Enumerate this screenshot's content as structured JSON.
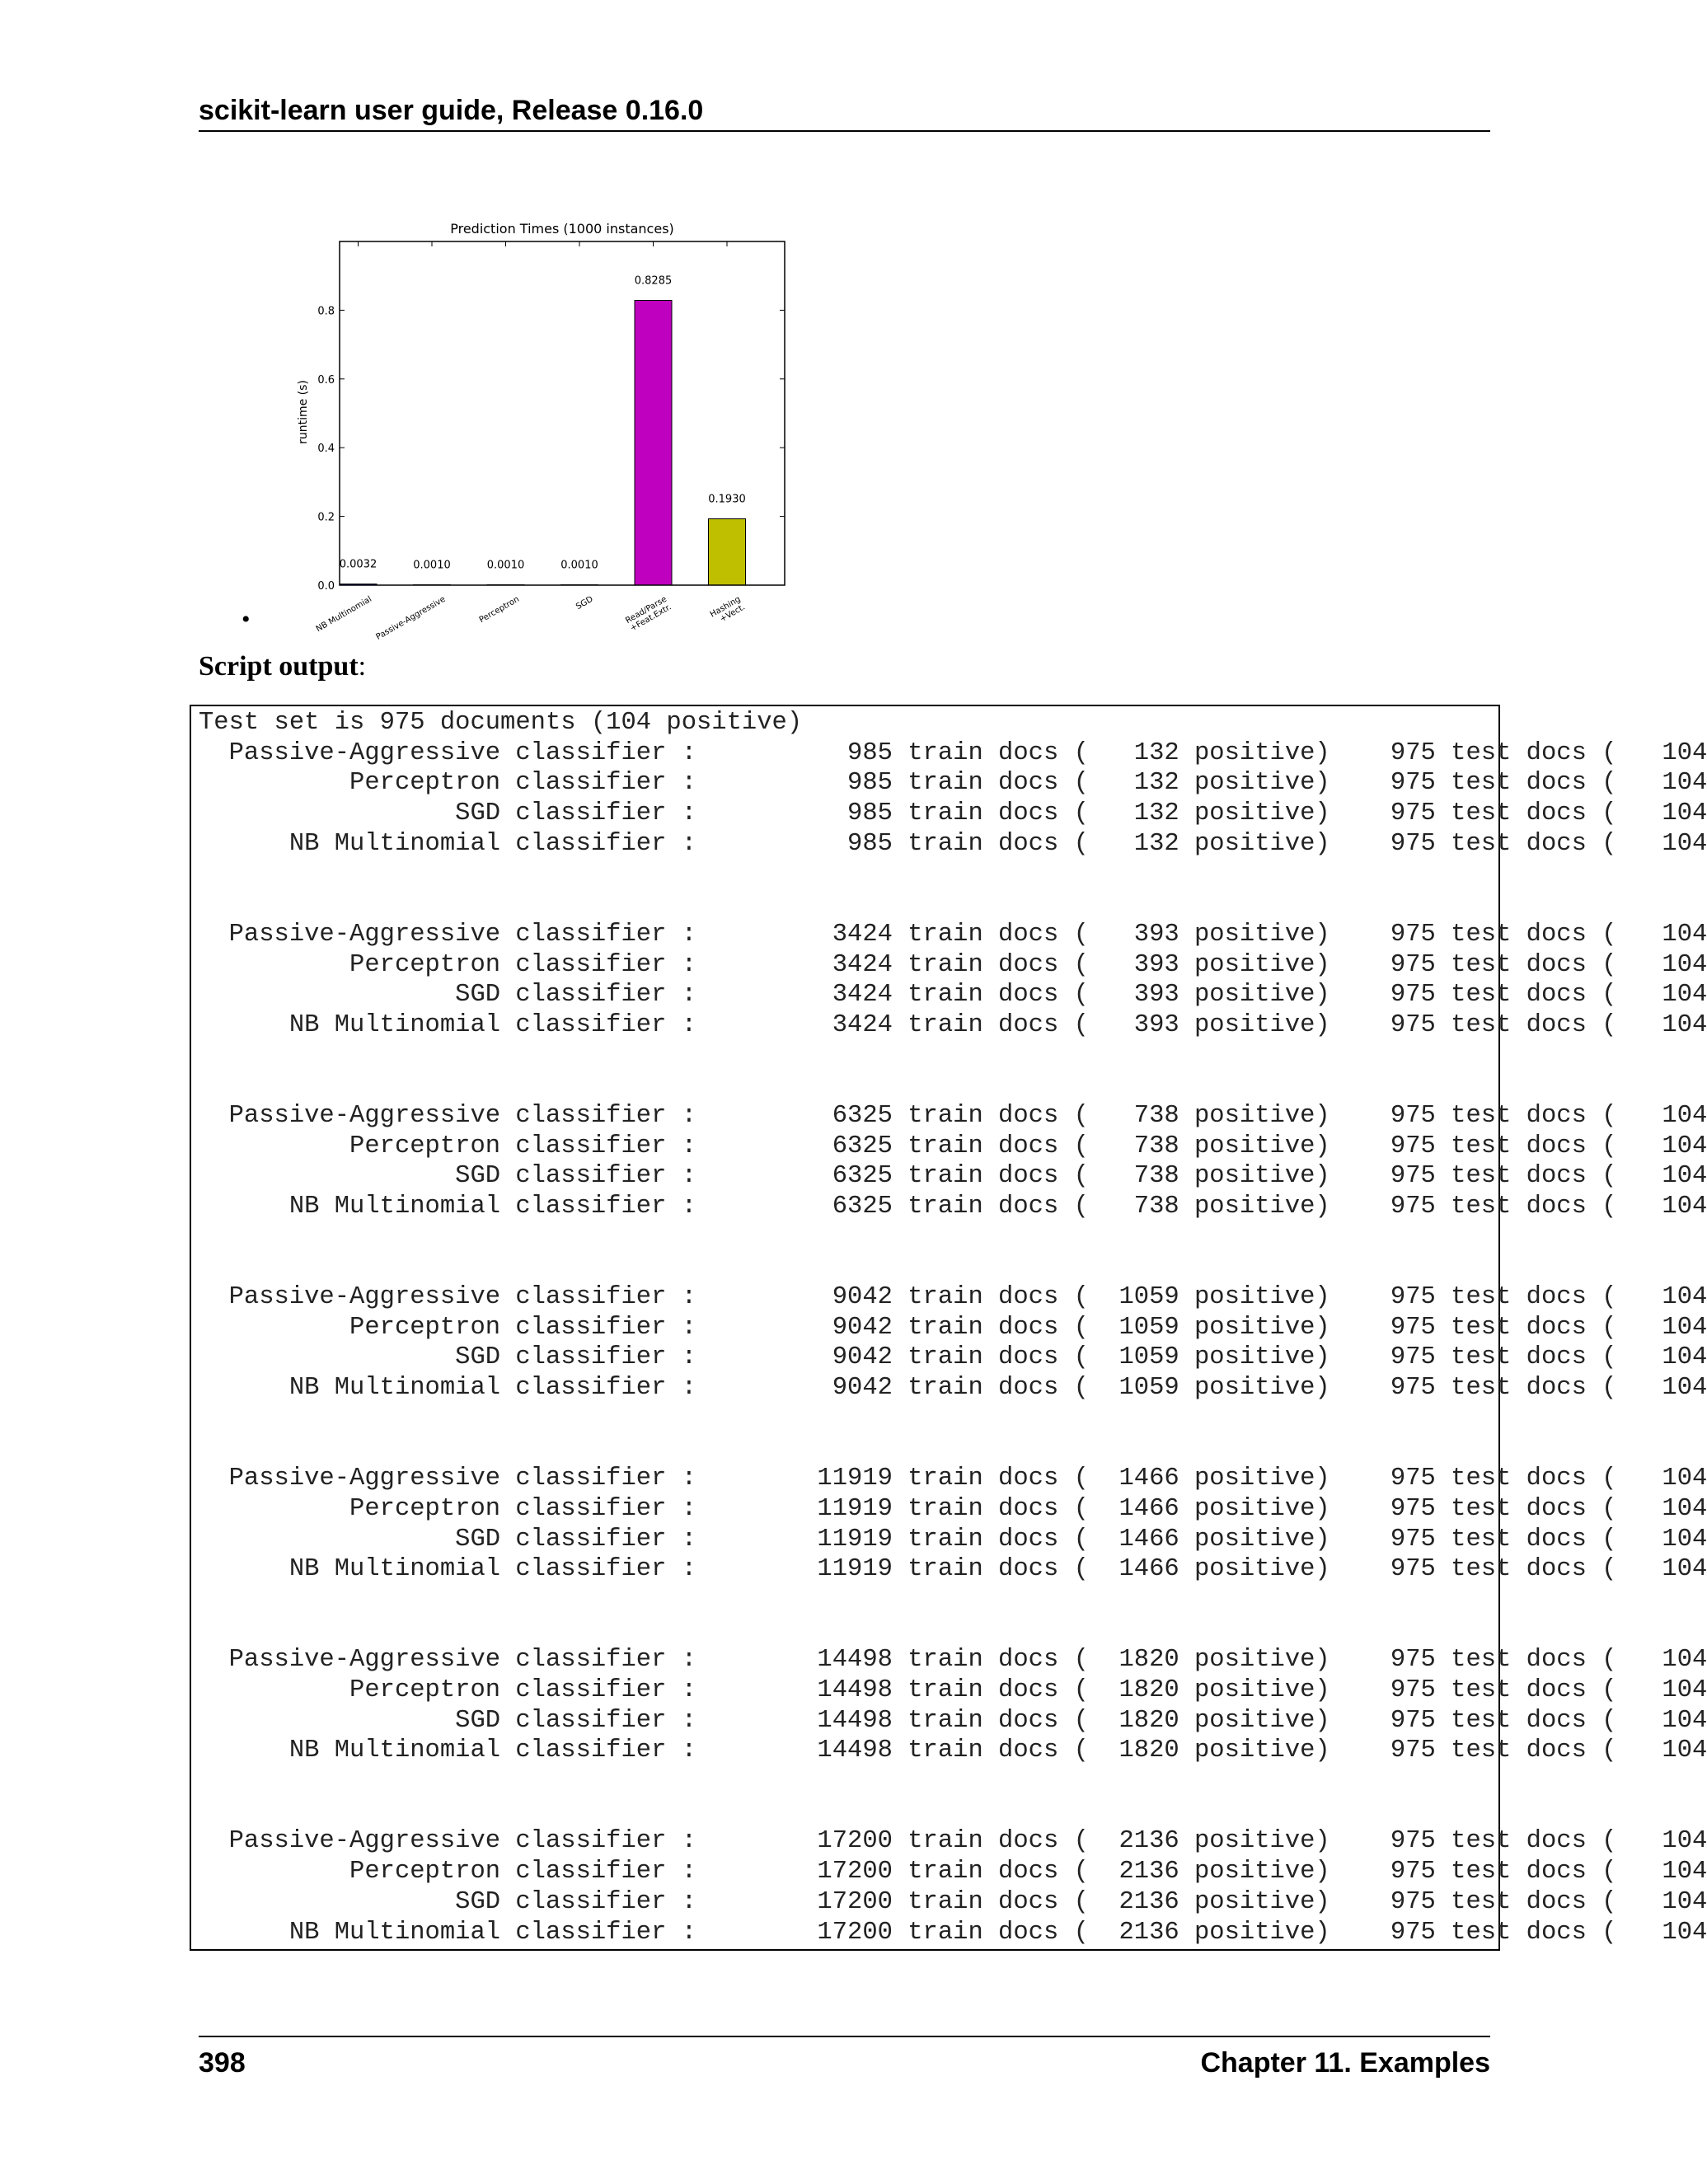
{
  "header": {
    "title": "scikit-learn user guide, Release 0.16.0"
  },
  "figure": {
    "bullet": "•",
    "chart_data": {
      "type": "bar",
      "title": "Prediction Times (1000 instances)",
      "ylabel": "runtime (s)",
      "xlabel": "",
      "ylim": [
        0,
        1.0
      ],
      "yticks": [
        "0.0",
        "0.2",
        "0.4",
        "0.6",
        "0.8"
      ],
      "categories": [
        "NB Multinomial",
        "Passive-Aggressive",
        "Perceptron",
        "SGD",
        "Read/Parse\n+Feat.Extr.",
        "Hashing\n+Vect."
      ],
      "values": [
        0.0032,
        0.001,
        0.001,
        0.001,
        0.8285,
        0.193
      ],
      "value_labels": [
        "0.0032",
        "0.0010",
        "0.0010",
        "0.0010",
        "0.8285",
        "0.1930"
      ],
      "colors": [
        "#0000c0",
        "#0000c0",
        "#0000c0",
        "#0000c0",
        "#bf00bf",
        "#bfbf00"
      ],
      "grid": false
    }
  },
  "script_output": {
    "label_bold": "Script output",
    "label_rest": ":",
    "lines": [
      "Test set is 975 documents (104 positive)",
      "  Passive-Aggressive classifier :          985 train docs (   132 positive)    975 test docs (   104",
      "          Perceptron classifier :          985 train docs (   132 positive)    975 test docs (   104",
      "                 SGD classifier :          985 train docs (   132 positive)    975 test docs (   104",
      "      NB Multinomial classifier :          985 train docs (   132 positive)    975 test docs (   104",
      "",
      "",
      "  Passive-Aggressive classifier :         3424 train docs (   393 positive)    975 test docs (   104",
      "          Perceptron classifier :         3424 train docs (   393 positive)    975 test docs (   104",
      "                 SGD classifier :         3424 train docs (   393 positive)    975 test docs (   104",
      "      NB Multinomial classifier :         3424 train docs (   393 positive)    975 test docs (   104",
      "",
      "",
      "  Passive-Aggressive classifier :         6325 train docs (   738 positive)    975 test docs (   104",
      "          Perceptron classifier :         6325 train docs (   738 positive)    975 test docs (   104",
      "                 SGD classifier :         6325 train docs (   738 positive)    975 test docs (   104",
      "      NB Multinomial classifier :         6325 train docs (   738 positive)    975 test docs (   104",
      "",
      "",
      "  Passive-Aggressive classifier :         9042 train docs (  1059 positive)    975 test docs (   104",
      "          Perceptron classifier :         9042 train docs (  1059 positive)    975 test docs (   104",
      "                 SGD classifier :         9042 train docs (  1059 positive)    975 test docs (   104",
      "      NB Multinomial classifier :         9042 train docs (  1059 positive)    975 test docs (   104",
      "",
      "",
      "  Passive-Aggressive classifier :        11919 train docs (  1466 positive)    975 test docs (   104",
      "          Perceptron classifier :        11919 train docs (  1466 positive)    975 test docs (   104",
      "                 SGD classifier :        11919 train docs (  1466 positive)    975 test docs (   104",
      "      NB Multinomial classifier :        11919 train docs (  1466 positive)    975 test docs (   104",
      "",
      "",
      "  Passive-Aggressive classifier :        14498 train docs (  1820 positive)    975 test docs (   104",
      "          Perceptron classifier :        14498 train docs (  1820 positive)    975 test docs (   104",
      "                 SGD classifier :        14498 train docs (  1820 positive)    975 test docs (   104",
      "      NB Multinomial classifier :        14498 train docs (  1820 positive)    975 test docs (   104",
      "",
      "",
      "  Passive-Aggressive classifier :        17200 train docs (  2136 positive)    975 test docs (   104",
      "          Perceptron classifier :        17200 train docs (  2136 positive)    975 test docs (   104",
      "                 SGD classifier :        17200 train docs (  2136 positive)    975 test docs (   104",
      "      NB Multinomial classifier :        17200 train docs (  2136 positive)    975 test docs (   104"
    ]
  },
  "footer": {
    "page_number": "398",
    "chapter": "Chapter 11.  Examples"
  }
}
